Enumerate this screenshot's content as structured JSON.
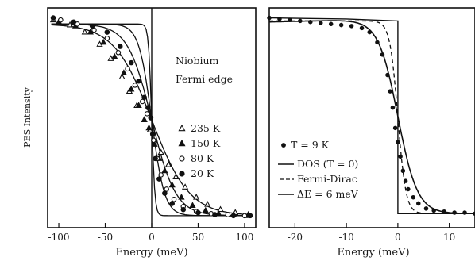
{
  "figure": {
    "ylabel": "PES Intensity"
  },
  "chart_data": [
    {
      "type": "line",
      "xlabel": "Energy (meV)",
      "ylabel": "PES Intensity",
      "xlim": [
        -112,
        112
      ],
      "ylim": [
        0,
        1
      ],
      "xticks": [
        -100,
        -50,
        0,
        50,
        100
      ],
      "annotations": [
        "Niobium",
        "Fermi edge"
      ],
      "legend_position": "right",
      "series": [
        {
          "name": "235 K",
          "marker": "triangle-open",
          "temperature_meV": 20.3,
          "x": [
            -106,
            -88,
            -72,
            -56,
            -44,
            -32,
            -24,
            -16,
            -8,
            -2,
            4,
            10,
            18,
            26,
            36,
            48,
            60,
            74,
            90,
            104
          ],
          "y": [
            0.98,
            0.955,
            0.92,
            0.86,
            0.79,
            0.7,
            0.63,
            0.56,
            0.49,
            0.44,
            0.38,
            0.33,
            0.27,
            0.21,
            0.16,
            0.11,
            0.075,
            0.05,
            0.035,
            0.025
          ]
        },
        {
          "name": "150 K",
          "marker": "triangle-filled",
          "temperature_meV": 12.9,
          "x": [
            -100,
            -82,
            -66,
            -52,
            -40,
            -30,
            -22,
            -14,
            -8,
            -3,
            3,
            8,
            14,
            22,
            32,
            44,
            58,
            72,
            88,
            104
          ],
          "y": [
            0.97,
            0.95,
            0.92,
            0.87,
            0.8,
            0.72,
            0.64,
            0.56,
            0.49,
            0.45,
            0.37,
            0.3,
            0.24,
            0.17,
            0.11,
            0.07,
            0.045,
            0.03,
            0.025,
            0.02
          ]
        },
        {
          "name": "80 K",
          "marker": "circle-open",
          "temperature_meV": 6.9,
          "x": [
            -98,
            -80,
            -62,
            -48,
            -36,
            -26,
            -18,
            -10,
            -5,
            -1,
            2,
            6,
            10,
            16,
            24,
            34,
            48,
            64,
            82,
            100
          ],
          "y": [
            0.98,
            0.96,
            0.93,
            0.89,
            0.82,
            0.74,
            0.66,
            0.58,
            0.52,
            0.5,
            0.39,
            0.3,
            0.22,
            0.15,
            0.1,
            0.065,
            0.04,
            0.03,
            0.025,
            0.02
          ]
        },
        {
          "name": "20 K",
          "marker": "circle-filled",
          "temperature_meV": 1.7,
          "x": [
            -106,
            -84,
            -64,
            -48,
            -34,
            -22,
            -14,
            -8,
            -4,
            -1,
            1,
            4,
            8,
            14,
            22,
            34,
            50,
            68,
            88,
            106
          ],
          "y": [
            0.99,
            0.97,
            0.95,
            0.92,
            0.85,
            0.77,
            0.68,
            0.6,
            0.55,
            0.5,
            0.42,
            0.3,
            0.2,
            0.13,
            0.08,
            0.05,
            0.035,
            0.025,
            0.02,
            0.02
          ]
        }
      ]
    },
    {
      "type": "line",
      "xlabel": "Energy (meV)",
      "xlim": [
        -25,
        15
      ],
      "ylim": [
        0,
        1
      ],
      "xticks": [
        -20,
        -10,
        0,
        10
      ],
      "legend_position": "bottom-left",
      "series": [
        {
          "name": "T = 9 K",
          "marker": "circle-filled",
          "x": [
            -25,
            -23,
            -21,
            -19,
            -17,
            -15,
            -13,
            -11,
            -9,
            -7,
            -5.5,
            -4,
            -3,
            -2,
            -1.5,
            -1,
            -0.5,
            0,
            0.5,
            1,
            1.5,
            2,
            3,
            4,
            5.5,
            7,
            9,
            11,
            13,
            15
          ],
          "y": [
            0.99,
            0.985,
            0.98,
            0.975,
            0.97,
            0.965,
            0.96,
            0.955,
            0.95,
            0.94,
            0.92,
            0.87,
            0.81,
            0.71,
            0.63,
            0.55,
            0.45,
            0.38,
            0.31,
            0.24,
            0.19,
            0.15,
            0.11,
            0.08,
            0.055,
            0.045,
            0.04,
            0.035,
            0.035,
            0.03
          ]
        },
        {
          "name": "DOS (T = 0)",
          "style": "solid"
        },
        {
          "name": "Fermi-Dirac",
          "style": "dashed"
        },
        {
          "name": "ΔE = 6 meV",
          "style": "solid"
        }
      ]
    }
  ]
}
